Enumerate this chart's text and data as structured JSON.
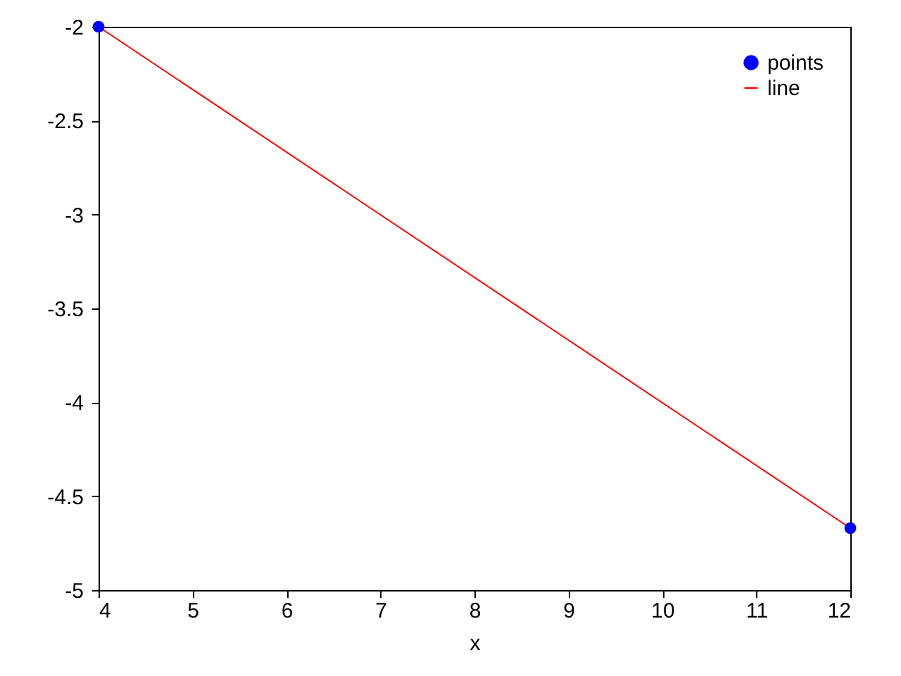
{
  "chart_data": {
    "type": "scatter",
    "xlabel": "x",
    "x": [
      4,
      12
    ],
    "series": [
      {
        "name": "points",
        "color": "#0000ff",
        "values": [
          -2,
          -4.67
        ],
        "marker": "circle"
      },
      {
        "name": "line",
        "type": "line",
        "color": "#ff0000",
        "values": [
          -2,
          -4.67
        ],
        "line_style": "solid"
      }
    ],
    "xlim": [
      4,
      12
    ],
    "xticks": [
      4,
      5,
      6,
      7,
      8,
      9,
      10,
      11,
      12
    ],
    "ylim": [
      -5,
      -2
    ],
    "yticks": [
      -5,
      -4.5,
      -4,
      -3.5,
      -3,
      -2.5,
      -2
    ],
    "grid": false,
    "legend": "top right"
  }
}
